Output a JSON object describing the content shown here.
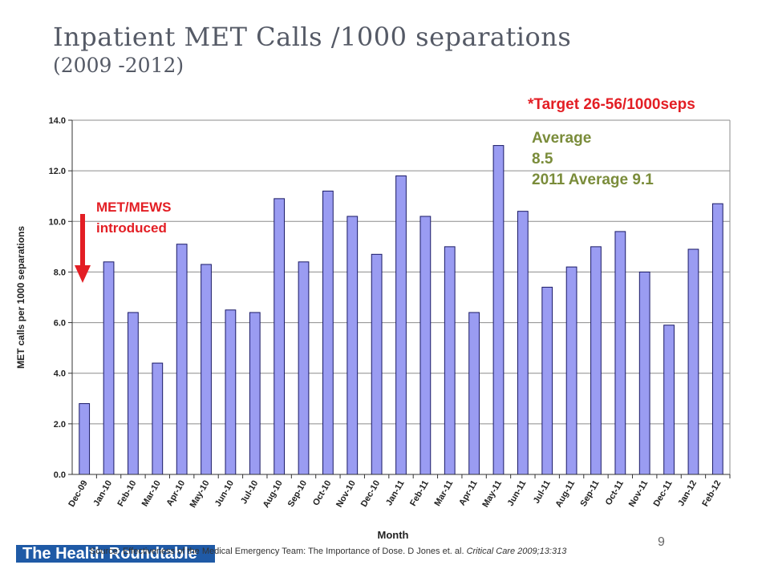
{
  "title": {
    "main": "Inpatient MET Calls /1000 separations",
    "sub": "(2009 -2012)"
  },
  "annotations": {
    "target": "*Target 26-56/1000seps",
    "average_label": "Average",
    "average_value": "8.5",
    "average_2011": "2011 Average  9.1",
    "met_line1": "MET/MEWS",
    "met_line2": "introduced"
  },
  "footer": {
    "org_text": "The Health Roundtable",
    "source_prefix": "Source: Effectiveness of the Medical Emergency Team: The Importance of Dose. D Jones et. al.",
    "source_journal": "Critical Care 2009;13:313",
    "page_number": "9"
  },
  "colors": {
    "bar_fill": "#9a9cf2",
    "bar_stroke": "#1a1a66",
    "accent_red": "#e31e24",
    "accent_olive": "#7a8c3a"
  },
  "chart_data": {
    "type": "bar",
    "categories": [
      "Dec-09",
      "Jan-10",
      "Feb-10",
      "Mar-10",
      "Apr-10",
      "May-10",
      "Jun-10",
      "Jul-10",
      "Aug-10",
      "Sep-10",
      "Oct-10",
      "Nov-10",
      "Dec-10",
      "Jan-11",
      "Feb-11",
      "Mar-11",
      "Apr-11",
      "May-11",
      "Jun-11",
      "Jul-11",
      "Aug-11",
      "Sep-11",
      "Oct-11",
      "Nov-11",
      "Dec-11",
      "Jan-12",
      "Feb-12"
    ],
    "values": [
      2.8,
      8.4,
      6.4,
      4.4,
      9.1,
      8.3,
      6.5,
      6.4,
      10.9,
      8.4,
      11.2,
      10.2,
      8.7,
      11.8,
      10.2,
      9.0,
      6.4,
      13.0,
      10.4,
      7.4,
      8.2,
      9.0,
      9.6,
      8.0,
      5.9,
      8.9,
      10.7
    ],
    "xlabel": "Month",
    "ylabel": "MET calls per 1000 separations",
    "ylim": [
      0,
      14
    ],
    "yticks": [
      "0.0",
      "2.0",
      "4.0",
      "6.0",
      "8.0",
      "10.0",
      "12.0",
      "14.0"
    ],
    "grid": true,
    "legend": "none"
  }
}
